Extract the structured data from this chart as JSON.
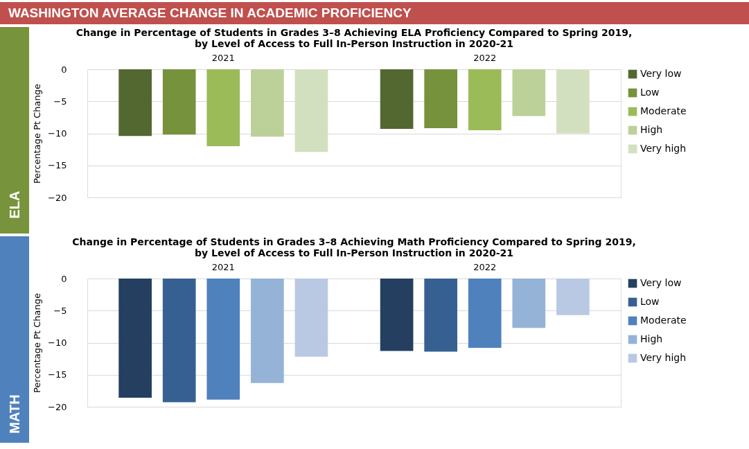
{
  "chart_data": [
    {
      "type": "bar",
      "title": "Change in Percentage of Students in Grades 3–8 Achieving ELA Proficiency Compared to Spring 2019,\nby Level of Access to Full In-Person Instruction in 2020-21",
      "ylabel": "Percentage Pt Change",
      "categories": [
        "2021",
        "2022"
      ],
      "series": [
        {
          "name": "Very low",
          "color": "#536830",
          "values": [
            -10.4,
            -9.3
          ]
        },
        {
          "name": "Low",
          "color": "#76923c",
          "values": [
            -10.2,
            -9.2
          ]
        },
        {
          "name": "Moderate",
          "color": "#9bbb59",
          "values": [
            -12.0,
            -9.5
          ]
        },
        {
          "name": "High",
          "color": "#bcd19a",
          "values": [
            -10.5,
            -7.3
          ]
        },
        {
          "name": "Very high",
          "color": "#d3e0bf",
          "values": [
            -12.9,
            -10.0
          ]
        }
      ],
      "ylim": [
        -20,
        0
      ],
      "yticks": [
        -20,
        -15,
        -10,
        -5,
        0
      ],
      "grid": "y",
      "legend": "right",
      "annotations": [
        "WASHINGTON AVERAGE CHANGE IN ACADEMIC PROFICIENCY",
        "ELA"
      ]
    },
    {
      "type": "bar",
      "title": "Change in Percentage of Students in Grades 3–8 Achieving Math Proficiency Compared to Spring 2019,\nby Level of Access to Full In-Person Instruction in 2020-21",
      "ylabel": "Percentage Pt Change",
      "categories": [
        "2021",
        "2022"
      ],
      "series": [
        {
          "name": "Very low",
          "color": "#243f60",
          "values": [
            -18.6,
            -11.3
          ]
        },
        {
          "name": "Low",
          "color": "#366092",
          "values": [
            -19.3,
            -11.4
          ]
        },
        {
          "name": "Moderate",
          "color": "#4f81bd",
          "values": [
            -18.9,
            -10.8
          ]
        },
        {
          "name": "High",
          "color": "#95b3d7",
          "values": [
            -16.3,
            -7.7
          ]
        },
        {
          "name": "Very high",
          "color": "#b9c9e3",
          "values": [
            -12.2,
            -5.7
          ]
        }
      ],
      "ylim": [
        -20,
        0
      ],
      "yticks": [
        -20,
        -15,
        -10,
        -5,
        0
      ],
      "grid": "y",
      "legend": "right",
      "annotations": [
        "MATH"
      ]
    }
  ]
}
